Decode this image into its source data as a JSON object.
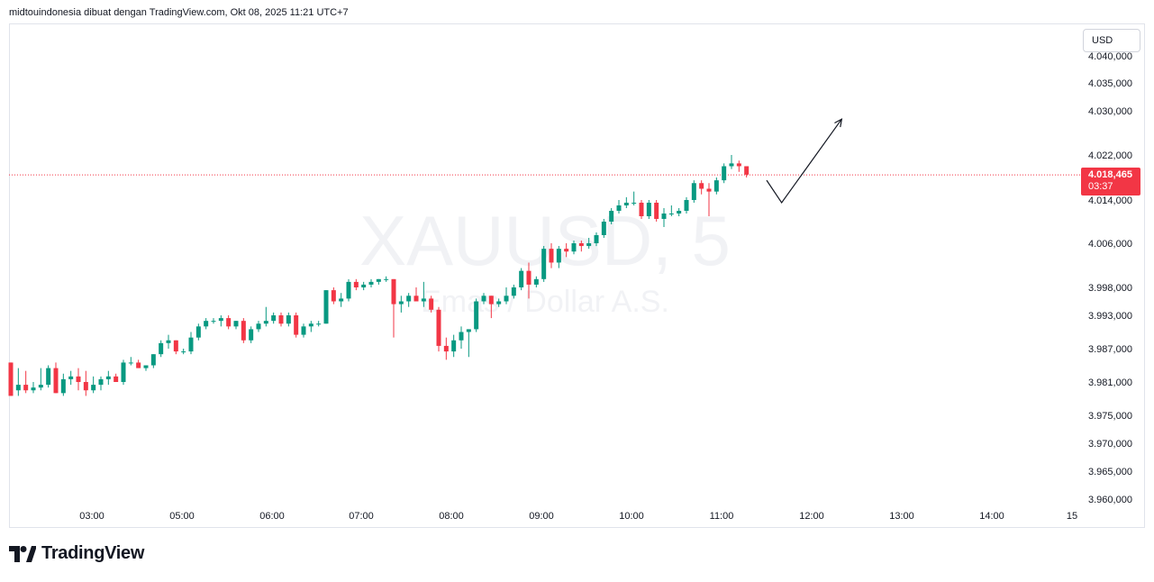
{
  "header": {
    "attribution": "midtouindonesia dibuat dengan TradingView.com, Okt 08, 2025 11:21 UTC+7"
  },
  "currency": "USD",
  "watermark": {
    "symbol": "XAUUSD, 5",
    "description": "Emas / Dollar A.S."
  },
  "price_label": {
    "value": "4.018,465",
    "countdown": "03:37"
  },
  "logo": {
    "text": "TradingView",
    "icon": "tradingview-logo-icon"
  },
  "colors": {
    "up": "#089981",
    "down": "#f23645",
    "current_price": "#f23645",
    "text": "#131722"
  },
  "chart_data": {
    "type": "candlestick",
    "symbol": "XAUUSD",
    "interval": "5",
    "grid": false,
    "y_ticks": [
      "4.040,000",
      "4.035,000",
      "4.030,000",
      "4.022,000",
      "4.014,000",
      "4.006,000",
      "3.998,000",
      "3.993,000",
      "3.987,000",
      "3.981,000",
      "3.975,000",
      "3.970,000",
      "3.965,000",
      "3.960,000"
    ],
    "x_ticks": [
      "03:00",
      "05:00",
      "06:00",
      "07:00",
      "08:00",
      "09:00",
      "10:00",
      "11:00",
      "12:00",
      "13:00",
      "14:00",
      "15"
    ],
    "current_price": 4018.465,
    "candles": [
      [
        3984.5,
        3984.5,
        3978.5,
        3978.5
      ],
      [
        3979.5,
        3983.5,
        3978.5,
        3980.5
      ],
      [
        3980.5,
        3983,
        3979,
        3979.5
      ],
      [
        3979.5,
        3981,
        3979,
        3980
      ],
      [
        3980,
        3983.5,
        3979.5,
        3980.5
      ],
      [
        3980.5,
        3984,
        3980,
        3983.5
      ],
      [
        3983.5,
        3984.5,
        3979,
        3979
      ],
      [
        3979,
        3982.5,
        3978.5,
        3981.5
      ],
      [
        3981.5,
        3983,
        3980.5,
        3982
      ],
      [
        3982,
        3983.5,
        3979.5,
        3981
      ],
      [
        3981,
        3983,
        3978.5,
        3979.5
      ],
      [
        3979.5,
        3982,
        3979,
        3980.5
      ],
      [
        3980.5,
        3982,
        3979.5,
        3981.5
      ],
      [
        3981.5,
        3983,
        3980.5,
        3982
      ],
      [
        3982,
        3982.5,
        3981,
        3981
      ],
      [
        3981,
        3985,
        3980.5,
        3984.5
      ],
      [
        3984.5,
        3985.5,
        3984,
        3984.5
      ],
      [
        3984.5,
        3985,
        3983.5,
        3983.5
      ],
      [
        3983.5,
        3984,
        3983,
        3984
      ],
      [
        3984,
        3986,
        3983.5,
        3986
      ],
      [
        3986,
        3988.5,
        3985.5,
        3988
      ],
      [
        3988,
        3989.5,
        3987,
        3988.5
      ],
      [
        3988.5,
        3988.5,
        3986,
        3986.5
      ],
      [
        3986.5,
        3987,
        3986,
        3986.5
      ],
      [
        3986.5,
        3990,
        3986,
        3989
      ],
      [
        3989,
        3991.5,
        3988.5,
        3991
      ],
      [
        3991,
        3992.5,
        3990.5,
        3992
      ],
      [
        3992,
        3992.5,
        3991.5,
        3992
      ],
      [
        3992,
        3993,
        3991,
        3992.5
      ],
      [
        3992.5,
        3993,
        3990.5,
        3991
      ],
      [
        3991,
        3992,
        3990.5,
        3992
      ],
      [
        3992,
        3992.5,
        3988,
        3988.5
      ],
      [
        3988.5,
        3991,
        3988,
        3990.5
      ],
      [
        3990.5,
        3992,
        3990,
        3991.5
      ],
      [
        3991.5,
        3994.5,
        3991,
        3992
      ],
      [
        3992,
        3993.5,
        3991.5,
        3993
      ],
      [
        3993,
        3993.5,
        3991,
        3991.5
      ],
      [
        3991.5,
        3993.5,
        3991,
        3993
      ],
      [
        3993,
        3993.5,
        3989,
        3989.5
      ],
      [
        3989.5,
        3991.5,
        3989,
        3991
      ],
      [
        3991,
        3992,
        3990,
        3991.5
      ],
      [
        3991.5,
        3992,
        3991,
        3991.5
      ],
      [
        3991.5,
        3997.5,
        3991.5,
        3997.5
      ],
      [
        3997.5,
        3998,
        3995,
        3995.5
      ],
      [
        3995.5,
        3997,
        3994.5,
        3996
      ],
      [
        3996,
        3999.5,
        3995.5,
        3999
      ],
      [
        3999,
        3999.5,
        3997.5,
        3998
      ],
      [
        3998,
        3999,
        3997.5,
        3998.5
      ],
      [
        3998.5,
        3999.5,
        3998,
        3999
      ],
      [
        3999,
        3999.5,
        3998.5,
        3999.5
      ],
      [
        3999.5,
        4000,
        3999,
        3999.5
      ],
      [
        3999.5,
        3999.5,
        3989,
        3995
      ],
      [
        3995,
        3996.5,
        3993.5,
        3995.5
      ],
      [
        3995.5,
        3997,
        3994.5,
        3996.5
      ],
      [
        3996.5,
        3998,
        3995.5,
        3995.5
      ],
      [
        3995.5,
        3999,
        3994.5,
        3996
      ],
      [
        3996,
        3996.5,
        3993.5,
        3994
      ],
      [
        3994,
        3994.5,
        3986.5,
        3987.5
      ],
      [
        3987.5,
        3989,
        3985,
        3986.5
      ],
      [
        3986.5,
        3989.5,
        3985.5,
        3988.5
      ],
      [
        3988.5,
        3991,
        3987,
        3990
      ],
      [
        3990,
        3990.5,
        3985.5,
        3990.5
      ],
      [
        3990.5,
        3996,
        3990,
        3995.5
      ],
      [
        3995.5,
        3997,
        3995,
        3996.5
      ],
      [
        3996.5,
        3996.5,
        3992.5,
        3995
      ],
      [
        3995,
        3996,
        3994.5,
        3995.5
      ],
      [
        3995.5,
        3998,
        3995,
        3996.5
      ],
      [
        3996.5,
        3998.5,
        3996,
        3998
      ],
      [
        3998,
        4001.5,
        3997.5,
        4001
      ],
      [
        4001,
        4002.5,
        3996,
        3998.5
      ],
      [
        3998.5,
        4000,
        3998,
        3999.5
      ],
      [
        3999.5,
        4005.5,
        3999,
        4005
      ],
      [
        4005,
        4006,
        4001.5,
        4002.5
      ],
      [
        4002.5,
        4005.5,
        4001.5,
        4005
      ],
      [
        4005,
        4006,
        4003.5,
        4004.5
      ],
      [
        4004.5,
        4006.5,
        4004,
        4006
      ],
      [
        4006,
        4006.5,
        4004.5,
        4005.5
      ],
      [
        4005.5,
        4007,
        4005,
        4006
      ],
      [
        4006,
        4008,
        4005.5,
        4007.5
      ],
      [
        4007.5,
        4010.5,
        4007,
        4010
      ],
      [
        4010,
        4012.5,
        4009.5,
        4012
      ],
      [
        4012,
        4014,
        4011.5,
        4013
      ],
      [
        4013,
        4014.5,
        4012.5,
        4013.5
      ],
      [
        4013.5,
        4015.5,
        4013,
        4013.5
      ],
      [
        4013.5,
        4014,
        4010.5,
        4011
      ],
      [
        4011,
        4014,
        4010.5,
        4013.5
      ],
      [
        4013.5,
        4014,
        4010,
        4010.5
      ],
      [
        4010.5,
        4012.5,
        4009,
        4011.5
      ],
      [
        4011.5,
        4013,
        4011,
        4011.5
      ],
      [
        4011.5,
        4012.5,
        4011,
        4012
      ],
      [
        4012,
        4014.5,
        4011.5,
        4014
      ],
      [
        4014,
        4017.5,
        4013.5,
        4017
      ],
      [
        4017,
        4017.5,
        4015,
        4016
      ],
      [
        4016,
        4017,
        4011,
        4015.5
      ],
      [
        4015.5,
        4018,
        4015,
        4017.5
      ],
      [
        4017.5,
        4020.5,
        4017,
        4020
      ],
      [
        4020,
        4022,
        4019.5,
        4020.5
      ],
      [
        4020.5,
        4021,
        4019,
        4020
      ],
      [
        4020,
        4020,
        4018,
        4018.5
      ]
    ],
    "annotation": {
      "type": "path-arrow",
      "points": [
        [
          4017.5,
          "11:30"
        ],
        [
          4013.5,
          "11:40"
        ],
        [
          4028.5,
          "12:20"
        ]
      ]
    }
  }
}
